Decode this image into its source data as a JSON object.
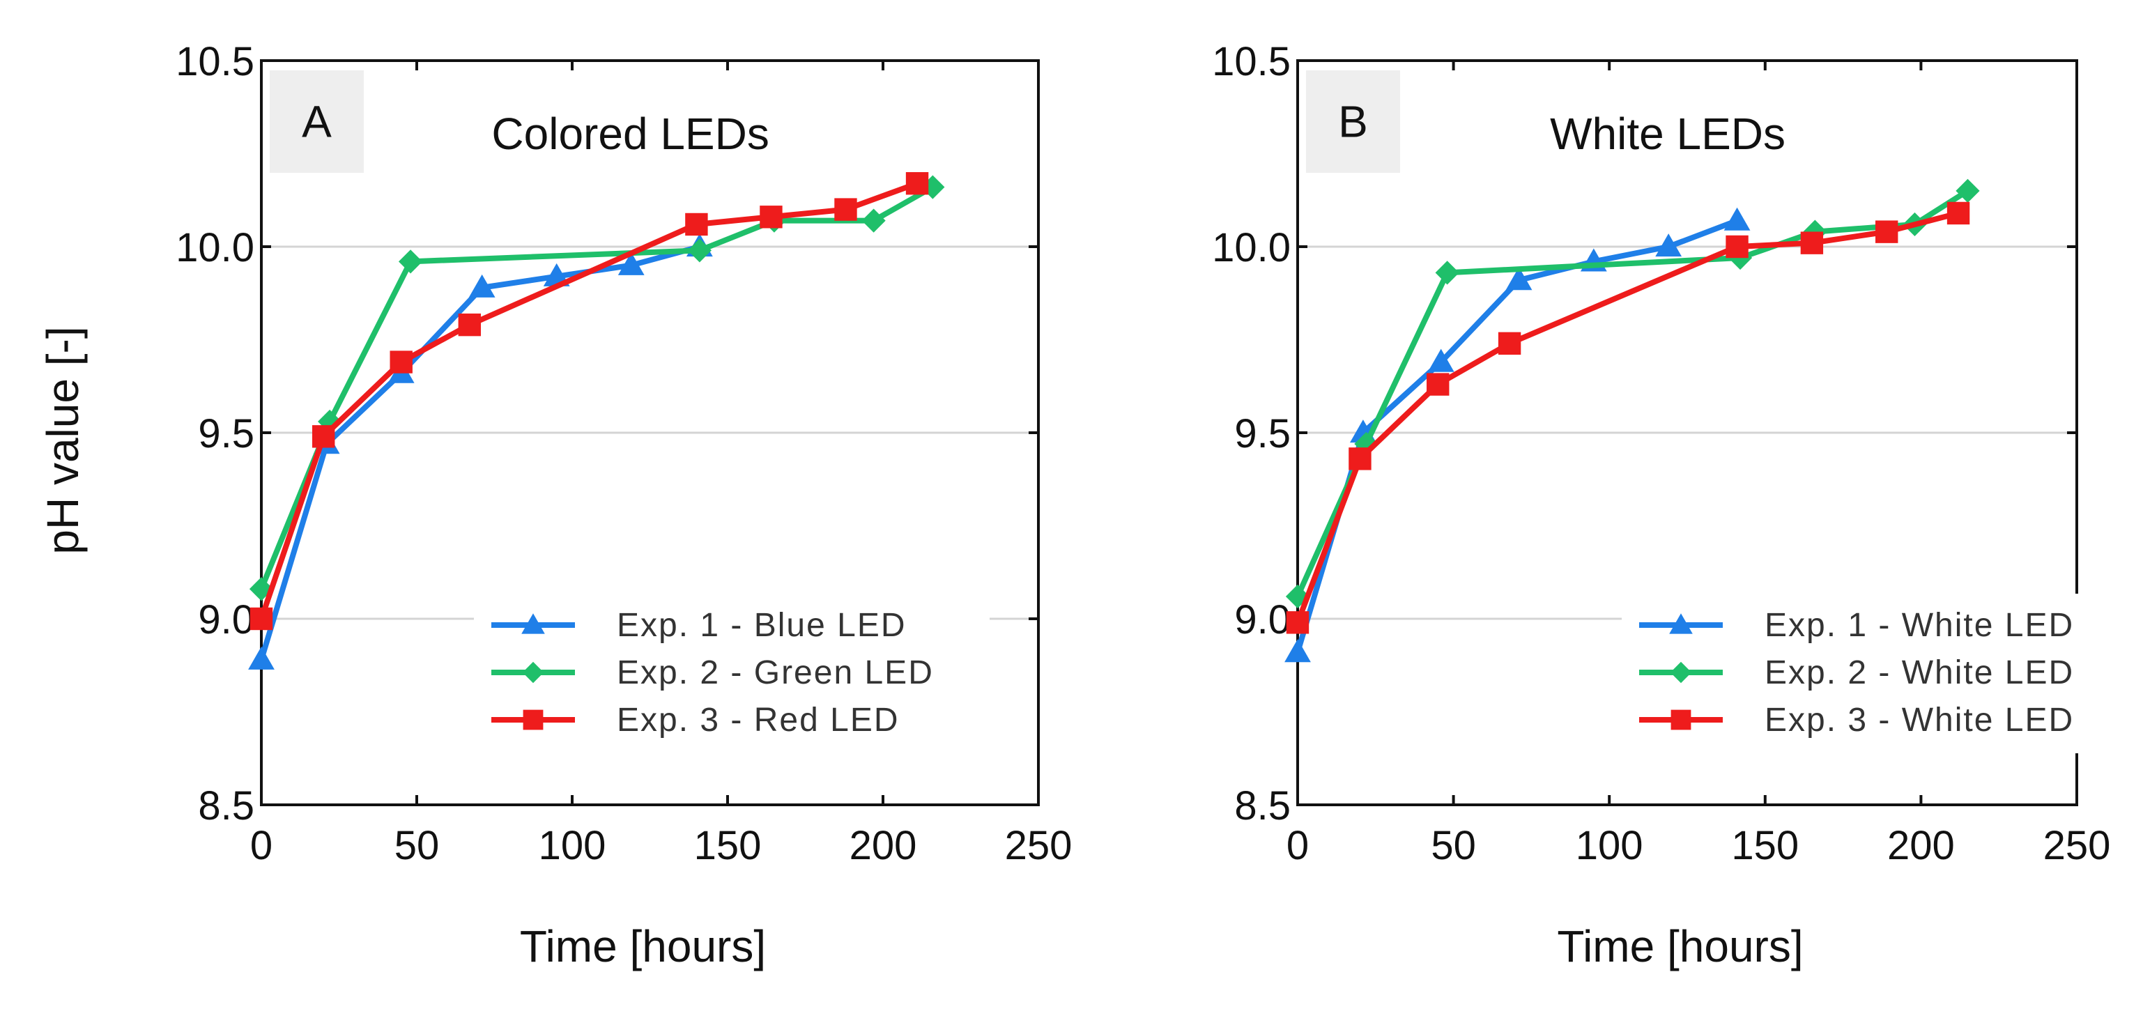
{
  "ylabel": "pH value [-]",
  "chart_data": [
    {
      "type": "line",
      "panel_label": "A",
      "title": "Colored LEDs",
      "xlabel": "Time [hours]",
      "ylabel": "pH value [-]",
      "xlim": [
        0,
        250
      ],
      "ylim": [
        8.5,
        10.5
      ],
      "xticks": [
        "0",
        "50",
        "100",
        "150",
        "200",
        "250"
      ],
      "yticks": [
        "8.5",
        "9.0",
        "9.5",
        "10.0",
        "10.5"
      ],
      "ytick_values": [
        8.5,
        9.0,
        9.5,
        10.0,
        10.5
      ],
      "xtick_values": [
        0,
        50,
        100,
        150,
        200,
        250
      ],
      "grid": "horizontal",
      "legend_position": "bottom-right",
      "series": [
        {
          "name": "Exp. 1 - Blue LED",
          "color": "#1f7fe8",
          "marker": "triangle",
          "x": [
            0,
            21,
            45,
            71,
            95,
            119,
            141
          ],
          "y": [
            8.89,
            9.47,
            9.66,
            9.89,
            9.92,
            9.95,
            10.0
          ]
        },
        {
          "name": "Exp. 2 - Green LED",
          "color": "#1fbf6a",
          "marker": "diamond",
          "x": [
            0,
            22,
            48,
            141,
            165,
            197,
            216
          ],
          "y": [
            9.08,
            9.53,
            9.96,
            9.99,
            10.07,
            10.07,
            10.16
          ]
        },
        {
          "name": "Exp. 3 - Red LED",
          "color": "#ee1c1c",
          "marker": "square",
          "x": [
            0,
            20,
            45,
            67,
            140,
            164,
            188,
            211
          ],
          "y": [
            9.0,
            9.49,
            9.69,
            9.79,
            10.06,
            10.08,
            10.1,
            10.17
          ]
        }
      ]
    },
    {
      "type": "line",
      "panel_label": "B",
      "title": "White LEDs",
      "xlabel": "Time [hours]",
      "ylabel": "pH value [-]",
      "xlim": [
        0,
        250
      ],
      "ylim": [
        8.5,
        10.5
      ],
      "xticks": [
        "0",
        "50",
        "100",
        "150",
        "200",
        "250"
      ],
      "yticks": [
        "8.5",
        "9.0",
        "9.5",
        "10.0",
        "10.5"
      ],
      "ytick_values": [
        8.5,
        9.0,
        9.5,
        10.0,
        10.5
      ],
      "xtick_values": [
        0,
        50,
        100,
        150,
        200,
        250
      ],
      "grid": "horizontal",
      "legend_position": "bottom-right",
      "series": [
        {
          "name": "Exp. 1 - White LED",
          "color": "#1f7fe8",
          "marker": "triangle",
          "x": [
            0,
            21,
            46,
            71,
            95,
            119,
            141
          ],
          "y": [
            8.91,
            9.5,
            9.69,
            9.91,
            9.96,
            10.0,
            10.07
          ]
        },
        {
          "name": "Exp. 2 - White LED",
          "color": "#1fbf6a",
          "marker": "diamond",
          "x": [
            0,
            22,
            48,
            142,
            166,
            198,
            215
          ],
          "y": [
            9.06,
            9.47,
            9.93,
            9.97,
            10.04,
            10.06,
            10.15
          ]
        },
        {
          "name": "Exp. 3 - White LED",
          "color": "#ee1c1c",
          "marker": "square",
          "x": [
            0,
            20,
            45,
            68,
            141,
            165,
            189,
            212
          ],
          "y": [
            8.99,
            9.43,
            9.63,
            9.74,
            10.0,
            10.01,
            10.04,
            10.09
          ]
        }
      ]
    }
  ]
}
